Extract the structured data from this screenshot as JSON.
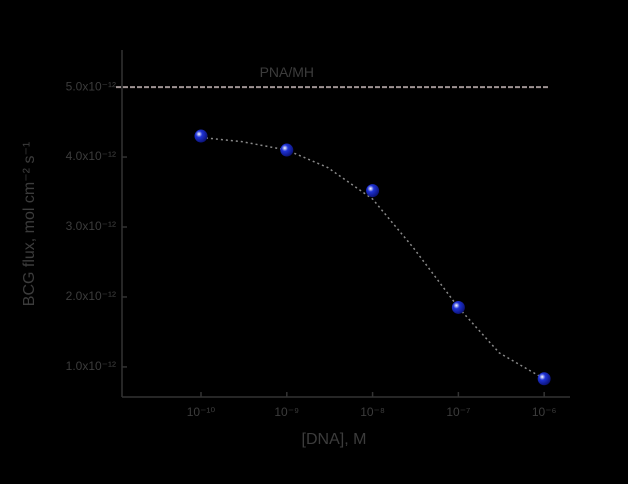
{
  "chart_data": {
    "type": "scatter",
    "xlabel": "[DNA], M",
    "ylabel": "BCG flux, mol cm⁻² s⁻¹",
    "xscale": "log",
    "xlim": [
      1.2e-11,
      2e-06
    ],
    "xticks": [
      {
        "value": 1e-10,
        "label": "10⁻¹⁰"
      },
      {
        "value": 1e-09,
        "label": "10⁻⁹"
      },
      {
        "value": 1e-08,
        "label": "10⁻⁸"
      },
      {
        "value": 1e-07,
        "label": "10⁻⁷"
      },
      {
        "value": 1e-06,
        "label": "10⁻⁶"
      }
    ],
    "ylim": [
      5.7e-13,
      5.53e-12
    ],
    "yticks": [
      {
        "value": 1e-12,
        "label": "1.0x10⁻¹²"
      },
      {
        "value": 2e-12,
        "label": "2.0x10⁻¹²"
      },
      {
        "value": 3e-12,
        "label": "3.0x10⁻¹²"
      },
      {
        "value": 4e-12,
        "label": "4.0x10⁻¹²"
      },
      {
        "value": 5e-12,
        "label": "5.0x10⁻¹²"
      }
    ],
    "series": [
      {
        "color": "#1f33d6",
        "x": [
          1e-10,
          1e-09,
          1e-08,
          1e-07,
          1e-06
        ],
        "values": [
          4.3e-12,
          4.1e-12,
          3.52e-12,
          1.85e-12,
          8.3e-13
        ]
      }
    ],
    "fit": {
      "color": "#8a8a8a",
      "x": [
        1e-10,
        3e-10,
        1e-09,
        3e-09,
        1e-08,
        3e-08,
        1e-07,
        3e-07,
        1e-06
      ],
      "values": [
        4.28e-12,
        4.22e-12,
        4.1e-12,
        3.85e-12,
        3.4e-12,
        2.7e-12,
        1.85e-12,
        1.2e-12,
        8.3e-13
      ]
    },
    "reference_line": {
      "value": 5e-12,
      "label": "PNA/MH",
      "color": "#a09494"
    }
  }
}
